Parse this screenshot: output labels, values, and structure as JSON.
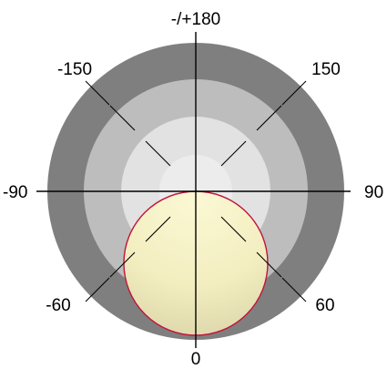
{
  "diagram": {
    "angle_labels": {
      "top": "-/+180",
      "upper_left": "-150",
      "upper_right": "150",
      "left": "-90",
      "right": "90",
      "lower_left": "-60",
      "lower_right": "60",
      "bottom": "0"
    },
    "colors": {
      "ring_outer": "#7f7f7f",
      "ring_2": "#bdbdbd",
      "ring_3": "#e2e2e2",
      "ring_center": "#ececec",
      "lobe_fill": "#f6f2c3",
      "lobe_outline": "#c0143c",
      "axis_line": "#000000"
    }
  }
}
